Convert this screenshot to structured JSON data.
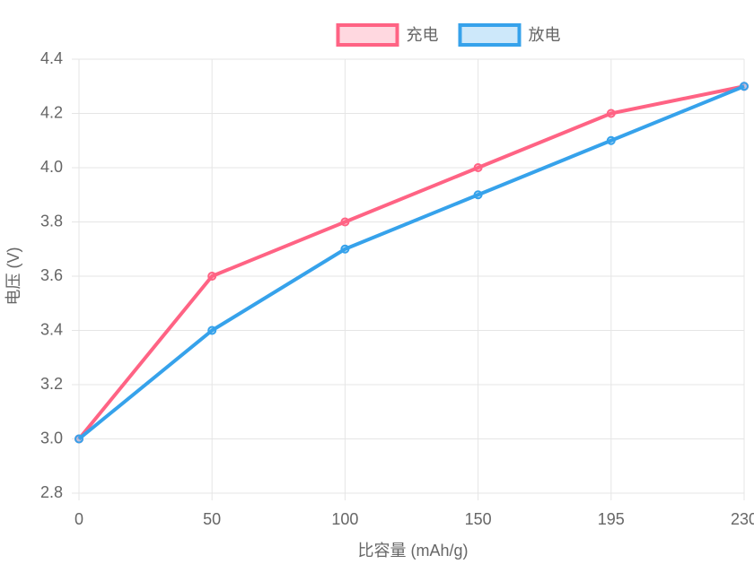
{
  "chart_data": {
    "type": "line",
    "x_label": "比容量 (mAh/g)",
    "y_label": "电压 (V)",
    "categories": [
      "0",
      "50",
      "100",
      "150",
      "195",
      "230"
    ],
    "series": [
      {
        "name": "充电",
        "color": "#ff6384",
        "values": [
          3.0,
          3.6,
          3.8,
          4.0,
          4.2,
          4.3
        ]
      },
      {
        "name": "放电",
        "color": "#36a2eb",
        "values": [
          3.0,
          3.4,
          3.7,
          3.9,
          4.1,
          4.3
        ]
      }
    ],
    "ylim": [
      2.8,
      4.4
    ],
    "yticks": [
      2.8,
      {
        "value": 3,
        "label": "3.0"
      },
      3.2,
      3.4,
      3.6,
      3.8,
      {
        "value": 4,
        "label": "4.0"
      },
      4.2,
      4.4
    ],
    "grid": true,
    "legend": "top"
  }
}
